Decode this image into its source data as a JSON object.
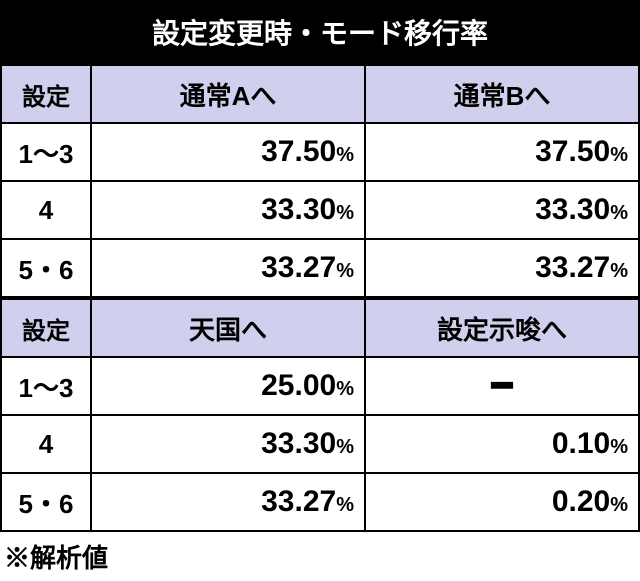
{
  "title": "設定変更時・モード移行率",
  "table1": {
    "header_col0": "設定",
    "header_col1": "通常Aへ",
    "header_col2": "通常Bへ",
    "rows": [
      {
        "label": "1〜3",
        "v1": "37.50",
        "v2": "37.50"
      },
      {
        "label": "4",
        "v1": "33.30",
        "v2": "33.30"
      },
      {
        "label": "5・6",
        "v1": "33.27",
        "v2": "33.27"
      }
    ]
  },
  "table2": {
    "header_col0": "設定",
    "header_col1": "天国へ",
    "header_col2": "設定示唆へ",
    "rows": [
      {
        "label": "1〜3",
        "v1": "25.00",
        "v2": null
      },
      {
        "label": "4",
        "v1": "33.30",
        "v2": "0.10"
      },
      {
        "label": "5・6",
        "v1": "33.27",
        "v2": "0.20"
      }
    ]
  },
  "percent_symbol": "%",
  "dash": "━",
  "note": "※解析値",
  "colors": {
    "title_bg": "#000000",
    "title_fg": "#ffffff",
    "header_bg": "#d0d0ee",
    "cell_bg": "#ffffff",
    "border": "#000000",
    "text": "#000000"
  }
}
